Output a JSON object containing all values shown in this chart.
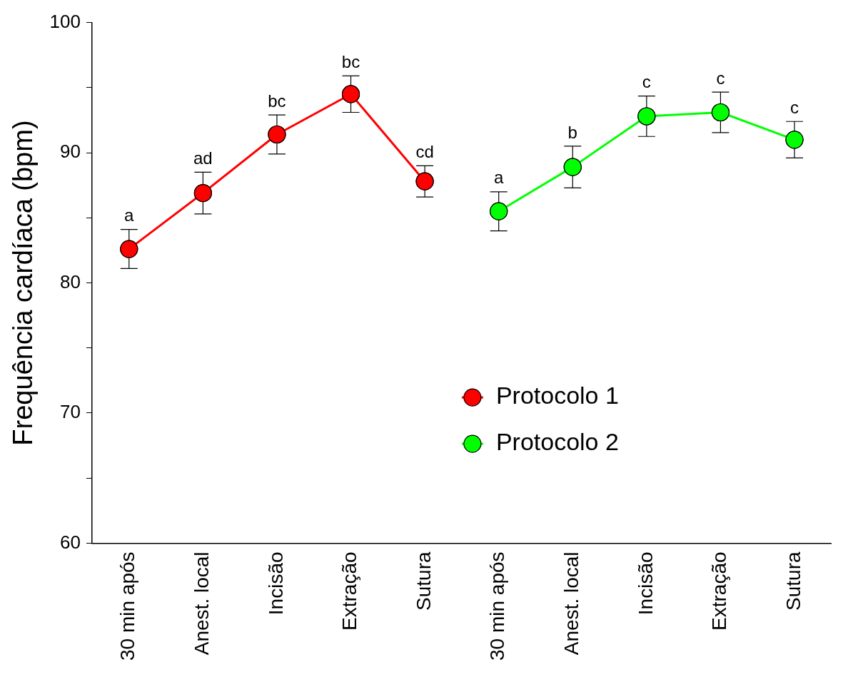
{
  "chart_data": {
    "type": "line",
    "ylabel": "Frequência cardíaca (bpm)",
    "categories": [
      "30 min após",
      "Anest. local",
      "Incisão",
      "Extração",
      "Sutura",
      "30 min após",
      "Anest. local",
      "Incisão",
      "Extração",
      "Sutura"
    ],
    "series": [
      {
        "name": "Protocolo 1",
        "color": "#ff0000",
        "values": [
          82.6,
          86.9,
          91.4,
          94.5,
          87.8,
          null,
          null,
          null,
          null,
          null
        ],
        "errors": [
          1.5,
          1.6,
          1.5,
          1.4,
          1.2,
          null,
          null,
          null,
          null,
          null
        ],
        "value_labels": [
          "a",
          "ad",
          "bc",
          "bc",
          "cd",
          null,
          null,
          null,
          null,
          null
        ]
      },
      {
        "name": "Protocolo 2",
        "color": "#00ff00",
        "values": [
          null,
          null,
          null,
          null,
          null,
          85.5,
          88.9,
          92.8,
          93.1,
          91.0
        ],
        "errors": [
          null,
          null,
          null,
          null,
          null,
          1.5,
          1.6,
          1.55,
          1.55,
          1.4
        ],
        "value_labels": [
          null,
          null,
          null,
          null,
          null,
          "a",
          "b",
          "c",
          "c",
          "c"
        ]
      }
    ],
    "ylim": [
      60,
      100
    ],
    "yticks": [
      60,
      {
        "value": 65,
        "label": null
      },
      70,
      {
        "value": 75,
        "label": null
      },
      80,
      {
        "value": 85,
        "label": null
      },
      90,
      {
        "value": 95,
        "label": null
      },
      100
    ],
    "grid": false,
    "legend": "bottom right",
    "marker": "circle",
    "line_style": "solid"
  }
}
